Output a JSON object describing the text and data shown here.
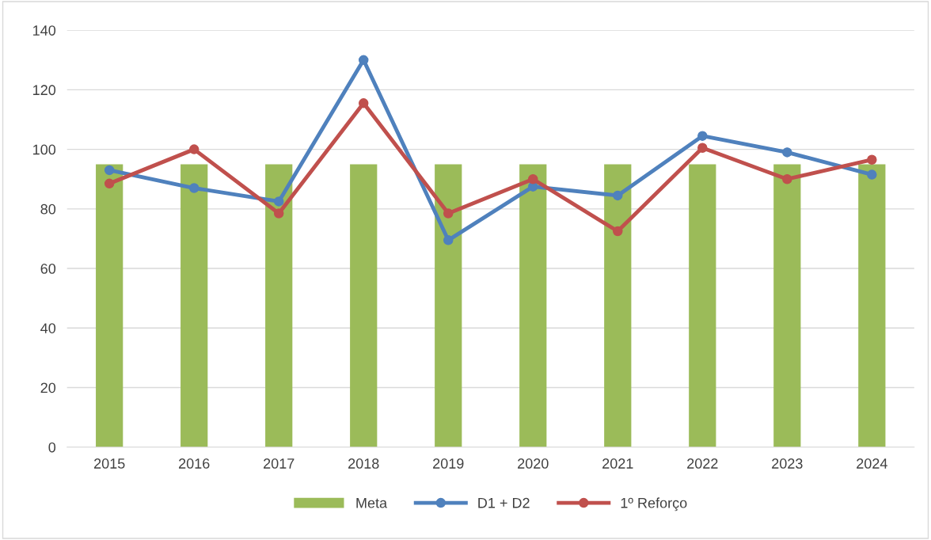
{
  "chart_data": {
    "type": "bar",
    "categories": [
      "2015",
      "2016",
      "2017",
      "2018",
      "2019",
      "2020",
      "2021",
      "2022",
      "2023",
      "2024"
    ],
    "series": [
      {
        "name": "Meta",
        "color": "#9bbb59",
        "values": [
          95,
          95,
          95,
          95,
          95,
          95,
          95,
          95,
          95,
          95
        ]
      },
      {
        "name": "D1 + D2",
        "type": "line",
        "color": "#4f81bd",
        "values": [
          93,
          87,
          82.5,
          130,
          69.5,
          87.5,
          84.5,
          104.5,
          99,
          91.5
        ]
      },
      {
        "name": "1º Reforço",
        "type": "line",
        "color": "#c0504d",
        "values": [
          88.5,
          100,
          78.5,
          115.5,
          78.5,
          90,
          72.5,
          100.5,
          90,
          96.5
        ]
      }
    ],
    "ylim": [
      0,
      140
    ],
    "yticks": [
      0,
      20,
      40,
      60,
      80,
      100,
      120,
      140
    ],
    "grid": "y",
    "legend": "bottom",
    "marker": "circle",
    "line_style": "solid"
  }
}
